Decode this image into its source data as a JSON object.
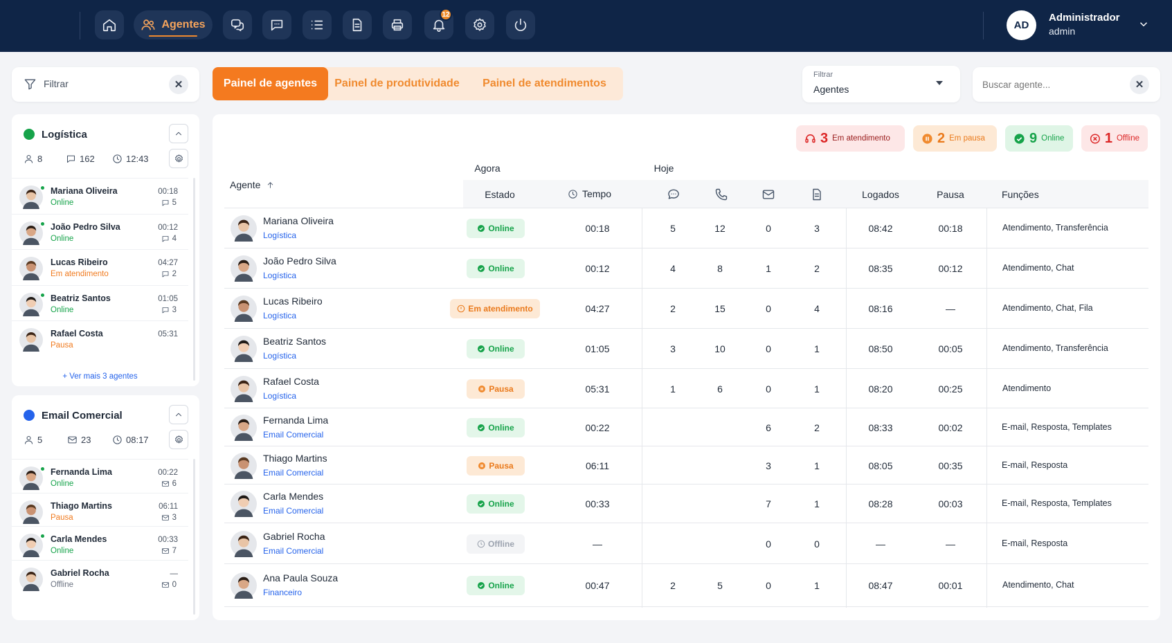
{
  "topbar": {
    "nav_active_label": "Agentes",
    "notification_count": "12",
    "user_initials": "AD",
    "user_name": "Administrador",
    "user_role": "admin",
    "brand_color": "#0f2547",
    "accent_color": "#f47a1f"
  },
  "sidebar": {
    "filter_label": "Filtrar",
    "groups": [
      {
        "name": "Logística",
        "dot_color": "#16a34a",
        "agents": "8",
        "messages": "162",
        "time": "12:43",
        "rows": [
          {
            "name": "Mariana Oliveira",
            "status": "Online",
            "time": "00:18",
            "count": "5"
          },
          {
            "name": "João Pedro Silva",
            "status": "Online",
            "time": "00:12",
            "count": "4"
          },
          {
            "name": "Lucas Ribeiro",
            "status": "Em atendimento",
            "time": "04:27",
            "count": "2"
          },
          {
            "name": "Beatriz Santos",
            "status": "Online",
            "time": "01:05",
            "count": "3"
          },
          {
            "name": "Rafael Costa",
            "status": "Pausa",
            "time": "05:31",
            "count": ""
          }
        ],
        "more": "+ Ver mais 3 agentes"
      },
      {
        "name": "Email Comercial",
        "dot_color": "#2563eb",
        "agents": "5",
        "messages": "23",
        "time": "08:17",
        "rows": [
          {
            "name": "Fernanda Lima",
            "status": "Online",
            "time": "00:22",
            "count": "6"
          },
          {
            "name": "Thiago Martins",
            "status": "Pausa",
            "time": "06:11",
            "count": "3"
          },
          {
            "name": "Carla Mendes",
            "status": "Online",
            "time": "00:33",
            "count": "7"
          },
          {
            "name": "Gabriel Rocha",
            "status": "Offline",
            "time": "—",
            "count": "0"
          }
        ]
      }
    ]
  },
  "tabs": [
    "Painel de agentes",
    "Painel de produtividade",
    "Painel de atendimentos"
  ],
  "filter_select": {
    "label": "Filtrar",
    "value": "Agentes"
  },
  "search": {
    "placeholder": "Buscar agente..."
  },
  "summary": [
    {
      "count": "3",
      "label": "Em atendimento",
      "icon": "headset-icon"
    },
    {
      "count": "2",
      "label": "Em pausa",
      "icon": "pause-icon"
    },
    {
      "count": "9",
      "label": "Online",
      "icon": "check-circle-icon"
    },
    {
      "count": "1",
      "label": "Offline",
      "icon": "x-circle-icon"
    }
  ],
  "table": {
    "group_now": "Agora",
    "group_today": "Hoje",
    "col_agent": "Agente",
    "col_state": "Estado",
    "col_time": "Tempo",
    "col_logged": "Logados",
    "col_pause": "Pausa",
    "col_functions": "Funções",
    "rows": [
      {
        "name": "Mariana Oliveira",
        "team": "Logística",
        "status": "Online",
        "time": "00:18",
        "chat": "5",
        "phone": "12",
        "mail": "0",
        "doc": "3",
        "logged": "08:42",
        "pause": "00:18",
        "functions": "Atendimento, Transferência"
      },
      {
        "name": "João Pedro Silva",
        "team": "Logística",
        "status": "Online",
        "time": "00:12",
        "chat": "4",
        "phone": "8",
        "mail": "1",
        "doc": "2",
        "logged": "08:35",
        "pause": "00:12",
        "functions": "Atendimento, Chat"
      },
      {
        "name": "Lucas Ribeiro",
        "team": "Logística",
        "status": "Em atendimento",
        "time": "04:27",
        "chat": "2",
        "phone": "15",
        "mail": "0",
        "doc": "4",
        "logged": "08:16",
        "pause": "—",
        "functions": "Atendimento, Chat, Fila"
      },
      {
        "name": "Beatriz Santos",
        "team": "Logística",
        "status": "Online",
        "time": "01:05",
        "chat": "3",
        "phone": "10",
        "mail": "0",
        "doc": "1",
        "logged": "08:50",
        "pause": "00:05",
        "functions": "Atendimento, Transferência"
      },
      {
        "name": "Rafael Costa",
        "team": "Logística",
        "status": "Pausa",
        "time": "05:31",
        "chat": "1",
        "phone": "6",
        "mail": "0",
        "doc": "1",
        "logged": "08:20",
        "pause": "00:25",
        "functions": "Atendimento"
      },
      {
        "name": "Fernanda Lima",
        "team": "Email Comercial",
        "status": "Online",
        "time": "00:22",
        "chat": "",
        "phone": "",
        "mail": "6",
        "doc": "2",
        "logged": "08:33",
        "pause": "00:02",
        "functions": "E-mail, Resposta, Templates"
      },
      {
        "name": "Thiago Martins",
        "team": "Email Comercial",
        "status": "Pausa",
        "time": "06:11",
        "chat": "",
        "phone": "",
        "mail": "3",
        "doc": "1",
        "logged": "08:05",
        "pause": "00:35",
        "functions": "E-mail, Resposta"
      },
      {
        "name": "Carla Mendes",
        "team": "Email Comercial",
        "status": "Online",
        "time": "00:33",
        "chat": "",
        "phone": "",
        "mail": "7",
        "doc": "1",
        "logged": "08:28",
        "pause": "00:03",
        "functions": "E-mail, Resposta, Templates"
      },
      {
        "name": "Gabriel Rocha",
        "team": "Email Comercial",
        "status": "Offline",
        "time": "—",
        "chat": "",
        "phone": "",
        "mail": "0",
        "doc": "0",
        "logged": "—",
        "pause": "—",
        "functions": "E-mail, Resposta"
      },
      {
        "name": "Ana Paula Souza",
        "team": "Financeiro",
        "status": "Online",
        "time": "00:47",
        "chat": "2",
        "phone": "5",
        "mail": "0",
        "doc": "1",
        "logged": "08:47",
        "pause": "00:01",
        "functions": "Atendimento, Chat"
      }
    ]
  }
}
